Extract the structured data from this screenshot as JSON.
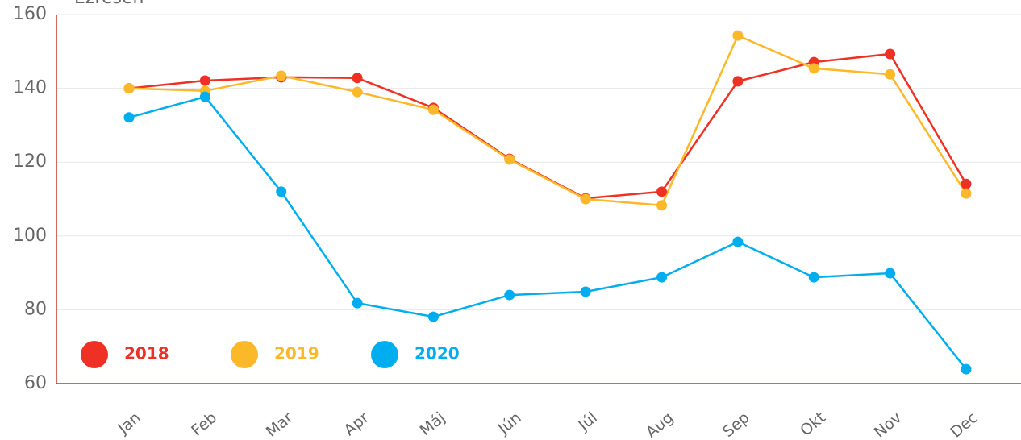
{
  "chart_data": {
    "type": "line",
    "y_label": "Ezresen",
    "categories": [
      "Jan",
      "Feb",
      "Mar",
      "Apr",
      "Máj",
      "Jún",
      "Júl",
      "Aug",
      "Sep",
      "Okt",
      "Nov",
      "Dec"
    ],
    "series": [
      {
        "name": "2018",
        "color": "#ee3124",
        "values": [
          140.0,
          142.1,
          143.0,
          142.8,
          134.7,
          120.9,
          110.2,
          112.0,
          141.9,
          147.1,
          149.3,
          114.1
        ]
      },
      {
        "name": "2019",
        "color": "#fbb829",
        "values": [
          140.0,
          139.3,
          143.4,
          139.0,
          134.2,
          120.7,
          110.0,
          108.3,
          154.3,
          145.4,
          143.8,
          111.5
        ]
      },
      {
        "name": "2020",
        "color": "#00aeef",
        "values": [
          132.1,
          137.7,
          112.0,
          81.8,
          78.1,
          84.0,
          84.9,
          88.8,
          98.4,
          88.8,
          89.9,
          63.9
        ]
      }
    ],
    "ylim": [
      60,
      160
    ],
    "yticks": [
      60,
      80,
      100,
      120,
      140,
      160
    ],
    "grid": true
  }
}
